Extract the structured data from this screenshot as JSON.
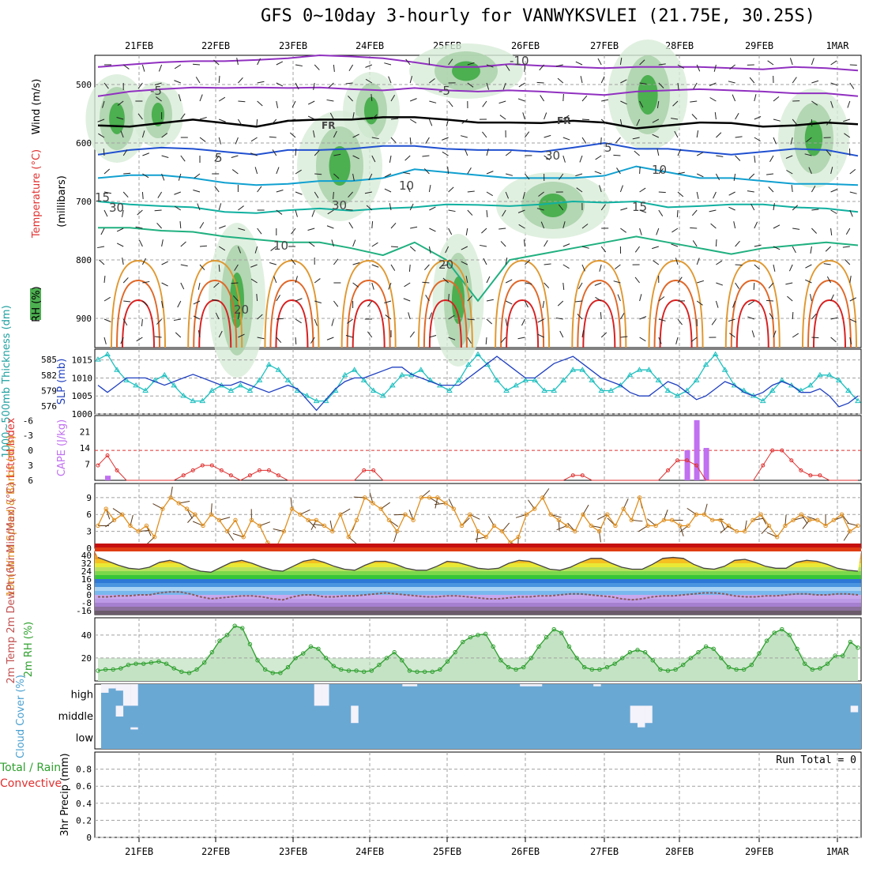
{
  "title": "GFS 0~10day 3-hourly for VANWYKSVLEI (21.75E, 30.25S)",
  "chart_data": [
    {
      "type": "contour",
      "dates": [
        "21FEB",
        "22FEB",
        "23FEB",
        "24FEB",
        "25FEB",
        "26FEB",
        "27FEB",
        "28FEB",
        "29FEB",
        "1MAR"
      ],
      "labels": [
        {
          "text": "Wind (m/s)",
          "color": "#000000"
        },
        {
          "text": "Temperature (°C)",
          "color": "#e03030"
        },
        {
          "text": "RH (%)",
          "color": "#000000"
        },
        {
          "text": "(millibars)",
          "color": "#000000"
        }
      ],
      "ylabel_colors": [
        "#000000",
        "#d04040",
        "#4040c0",
        "#d09030",
        "#000000"
      ],
      "yticks": [
        500,
        600,
        700,
        800,
        900
      ],
      "ylim": [
        450,
        950
      ],
      "contour_labels": [
        "-10",
        "-5",
        "-5",
        "FR",
        "FR",
        "5",
        "5",
        "10",
        "10",
        "15",
        "15",
        "20",
        "20",
        "30",
        "30",
        "30",
        "10"
      ],
      "isotherms": [
        {
          "label": "-10",
          "color": "#9030c0",
          "p": [
            470,
            466,
            462,
            460,
            460,
            458,
            455,
            450,
            452,
            455,
            462,
            470,
            470,
            465,
            468,
            470,
            472,
            470,
            470,
            470,
            472,
            474,
            470,
            472,
            476
          ]
        },
        {
          "label": "-5",
          "color": "#9030c0",
          "p": [
            520,
            512,
            508,
            505,
            506,
            505,
            506,
            505,
            508,
            510,
            506,
            510,
            512,
            510,
            512,
            515,
            518,
            512,
            510,
            508,
            510,
            512,
            515,
            515,
            520
          ]
        },
        {
          "label": "FR",
          "color": "#000000",
          "p": [
            570,
            572,
            566,
            560,
            566,
            572,
            562,
            560,
            560,
            556,
            556,
            560,
            565,
            565,
            566,
            562,
            565,
            575,
            570,
            565,
            566,
            572,
            570,
            565,
            568
          ]
        },
        {
          "label": "5",
          "color": "#2050d0",
          "p": [
            620,
            612,
            608,
            610,
            615,
            620,
            612,
            612,
            610,
            605,
            605,
            610,
            612,
            612,
            615,
            608,
            600,
            610,
            610,
            615,
            620,
            615,
            610,
            612,
            622
          ]
        },
        {
          "label": "10",
          "color": "#10a0d0",
          "p": [
            660,
            655,
            655,
            660,
            668,
            672,
            670,
            665,
            665,
            660,
            645,
            650,
            655,
            660,
            660,
            660,
            656,
            640,
            650,
            660,
            660,
            665,
            670,
            670,
            672
          ]
        },
        {
          "label": "15",
          "color": "#10b0a0",
          "p": [
            700,
            705,
            708,
            710,
            718,
            720,
            715,
            712,
            716,
            712,
            710,
            705,
            706,
            708,
            705,
            700,
            702,
            700,
            710,
            708,
            705,
            705,
            710,
            712,
            718
          ]
        },
        {
          "label": "20",
          "color": "#20b080",
          "p": [
            745,
            745,
            750,
            752,
            760,
            765,
            770,
            770,
            780,
            792,
            770,
            800,
            870,
            800,
            790,
            780,
            770,
            760,
            770,
            780,
            790,
            780,
            775,
            770,
            775
          ]
        }
      ],
      "rh_shade_color": "#4caf50"
    },
    {
      "type": "line",
      "ylabel": "1000~500mb Thickness (dm)",
      "ylabel2": "SLP (mb)",
      "yticks_left": [
        576,
        579,
        582,
        585
      ],
      "yticks_right": [
        1000,
        1005,
        1010,
        1015
      ],
      "series": [
        {
          "name": "thickness",
          "color": "#20c0c0",
          "marker": "triangle",
          "values": [
            585,
            586,
            583,
            581,
            580,
            579,
            581,
            582,
            580,
            578,
            577,
            577,
            579,
            580,
            579,
            580,
            579,
            581,
            584,
            583,
            581,
            579,
            578,
            577,
            577,
            579,
            582,
            583,
            581,
            579,
            578,
            580,
            582,
            582,
            583,
            581,
            580,
            579,
            581,
            584,
            586,
            584,
            581,
            579,
            580,
            581,
            581,
            579,
            579,
            581,
            583,
            583,
            581,
            579,
            579,
            580,
            582,
            583,
            583,
            581,
            579,
            578,
            579,
            581,
            584,
            586,
            583,
            580,
            579,
            578,
            577,
            579,
            581,
            580,
            579,
            580,
            582,
            582,
            581,
            579,
            577
          ]
        },
        {
          "name": "slp",
          "color": "#2040c0",
          "marker": "none",
          "values": [
            1008,
            1006,
            1008,
            1010,
            1010,
            1010,
            1009,
            1008,
            1009,
            1010,
            1011,
            1010,
            1009,
            1008,
            1008,
            1009,
            1008,
            1007,
            1006,
            1007,
            1008,
            1007,
            1004,
            1001,
            1004,
            1007,
            1009,
            1010,
            1010,
            1011,
            1012,
            1013,
            1013,
            1011,
            1010,
            1009,
            1008,
            1008,
            1008,
            1010,
            1012,
            1014,
            1016,
            1014,
            1012,
            1010,
            1010,
            1012,
            1014,
            1015,
            1016,
            1014,
            1012,
            1010,
            1009,
            1008,
            1006,
            1005,
            1005,
            1007,
            1009,
            1008,
            1006,
            1004,
            1005,
            1007,
            1009,
            1008,
            1006,
            1005,
            1006,
            1008,
            1009,
            1008,
            1006,
            1006,
            1007,
            1005,
            1002,
            1003,
            1005
          ]
        }
      ]
    },
    {
      "type": "bar+line",
      "ylabel": "Lifted Index",
      "ylabel2": "CAPE (J/kg)",
      "yticks_left": [
        -6,
        -3,
        0,
        3,
        6
      ],
      "yticks_right": [
        7,
        14,
        21
      ],
      "lifted_index": [
        3,
        1,
        4,
        6,
        6,
        6,
        6,
        6,
        6,
        5,
        4,
        3,
        3,
        4,
        5,
        6,
        5,
        4,
        4,
        5,
        6,
        6,
        6,
        6,
        6,
        6,
        6,
        6,
        4,
        4,
        6,
        6,
        6,
        6,
        6,
        6,
        6,
        6,
        6,
        6,
        6,
        6,
        6,
        6,
        6,
        6,
        6,
        6,
        6,
        6,
        5,
        5,
        6,
        6,
        6,
        6,
        6,
        6,
        6,
        6,
        4,
        2,
        2,
        3,
        6,
        6,
        6,
        6,
        6,
        6,
        3,
        0,
        0,
        2,
        4,
        5,
        5,
        6,
        6,
        6,
        6
      ],
      "cape_bars": [
        {
          "i": 1,
          "v": 2
        },
        {
          "i": 62,
          "v": 13
        },
        {
          "i": 63,
          "v": 26
        },
        {
          "i": 64,
          "v": 14
        }
      ],
      "series": [
        {
          "name": "Lifted Index",
          "color": "#e03030"
        },
        {
          "name": "CAPE",
          "color": "#c070f0"
        }
      ]
    },
    {
      "type": "line",
      "ylabel": "10m Wind Speed & Barbs (m/s)",
      "yticks": [
        0,
        3,
        6,
        9
      ],
      "ylim": [
        0,
        11.5
      ],
      "series": [
        {
          "name": "10m Wind Speed",
          "color": "#e09020",
          "values": [
            4,
            7,
            5,
            6,
            4,
            3,
            4,
            2,
            7,
            9,
            8,
            7,
            6,
            4,
            6,
            5,
            3,
            5,
            2,
            5,
            4,
            1,
            0,
            3,
            7,
            6,
            5,
            5,
            4,
            3,
            6,
            2,
            5,
            9,
            8,
            7,
            5,
            3,
            6,
            5,
            9,
            9,
            9,
            8,
            7,
            4,
            6,
            3,
            2,
            4,
            3,
            1,
            2,
            6,
            7,
            9,
            6,
            5,
            4,
            3,
            6,
            4,
            3,
            6,
            4,
            7,
            5,
            9,
            4,
            4,
            5,
            5,
            4,
            4,
            6,
            6,
            5,
            5,
            4,
            3,
            3,
            5,
            6,
            4,
            2,
            4,
            5,
            6,
            5,
            5,
            4,
            5,
            6,
            3,
            4
          ]
        }
      ]
    },
    {
      "type": "area",
      "ylabel": "2m Temp 2m DewPt (6hr Min/Max) (°C)",
      "yticks": [
        -16,
        -8,
        0,
        8,
        16,
        24,
        32,
        40
      ],
      "ylim": [
        -20,
        44
      ],
      "series": [
        {
          "name": "2m Temp",
          "color": "#444444",
          "values": [
            38,
            34,
            30,
            27,
            26,
            28,
            33,
            35,
            32,
            27,
            24,
            23,
            28,
            33,
            35,
            32,
            28,
            25,
            24,
            29,
            34,
            36,
            33,
            29,
            26,
            25,
            30,
            34,
            34,
            31,
            27,
            25,
            25,
            29,
            34,
            33,
            30,
            27,
            26,
            27,
            32,
            35,
            34,
            30,
            26,
            25,
            28,
            33,
            37,
            37,
            32,
            28,
            26,
            26,
            31,
            37,
            38,
            37,
            31,
            27,
            26,
            29,
            35,
            36,
            33,
            29,
            27,
            27,
            33,
            35,
            34,
            31,
            27,
            25,
            24
          ]
        },
        {
          "name": "2m DewPt",
          "color": "#8a5a5a",
          "values": [
            -2,
            -2,
            -1,
            -1,
            0,
            0,
            2,
            3,
            3,
            1,
            -2,
            -4,
            -3,
            -2,
            -1,
            -1,
            -2,
            -4,
            -5,
            -2,
            0,
            0,
            -2,
            -2,
            -1,
            -1,
            0,
            1,
            2,
            1,
            0,
            -1,
            -2,
            -2,
            -1,
            -1,
            -2,
            -3,
            -4,
            -4,
            -3,
            -2,
            -2,
            -1,
            -1,
            0,
            1,
            1,
            0,
            -1,
            -2,
            -4,
            -5,
            -4,
            -2,
            -1,
            -1,
            0,
            1,
            2,
            2,
            1,
            -1,
            -2,
            -2,
            -1,
            -1,
            0,
            1,
            1,
            0,
            0,
            1,
            1,
            0
          ]
        }
      ],
      "band_colors": [
        "#6b5b6b",
        "#8b6f9c",
        "#a57fd0",
        "#bd9ae8",
        "#caa8ee",
        "#79b8ee",
        "#a9d3f5",
        "#4a94e0",
        "#2e78d6",
        "#37c637",
        "#7ad84a",
        "#b8e060",
        "#e9e935",
        "#f5c020",
        "#f19720",
        "#ee6a18",
        "#e03c14",
        "#c61010"
      ]
    },
    {
      "type": "area",
      "ylabel": "2m RH (%)",
      "yticks": [
        20,
        40
      ],
      "ylim": [
        0,
        55
      ],
      "series": [
        {
          "name": "2m RH",
          "color": "#2ea02e",
          "values": [
            9,
            10,
            10,
            11,
            14,
            15,
            15,
            16,
            17,
            15,
            11,
            8,
            7,
            10,
            16,
            25,
            35,
            40,
            48,
            46,
            32,
            18,
            10,
            7,
            7,
            12,
            20,
            24,
            30,
            28,
            20,
            13,
            10,
            9,
            9,
            8,
            9,
            14,
            20,
            25,
            18,
            9,
            8,
            8,
            8,
            10,
            17,
            25,
            34,
            38,
            40,
            41,
            30,
            18,
            12,
            10,
            12,
            20,
            30,
            38,
            45,
            42,
            30,
            20,
            12,
            10,
            10,
            12,
            15,
            20,
            25,
            27,
            25,
            18,
            10,
            9,
            10,
            14,
            20,
            25,
            30,
            28,
            20,
            12,
            10,
            10,
            14,
            24,
            35,
            42,
            45,
            40,
            28,
            15,
            10,
            11,
            15,
            22,
            22,
            34,
            29
          ]
        }
      ]
    },
    {
      "type": "heatmap",
      "ylabel": "Cloud Cover (%)",
      "row_labels": [
        "high",
        "middle",
        "low"
      ],
      "fill_color": "#6aa8d4",
      "gaps": [
        {
          "i": 0,
          "row": "high",
          "frac": 0.4
        },
        {
          "i": 1,
          "row": "high",
          "frac": 0.2
        },
        {
          "i": 2,
          "row": "high",
          "frac": 0.3
        },
        {
          "i": 3,
          "row": "high",
          "frac": 1.0
        },
        {
          "i": 4,
          "row": "high",
          "frac": 1.0
        },
        {
          "i": 2,
          "row": "middle",
          "frac": 0.5
        },
        {
          "i": 4,
          "row": "low",
          "frac": 0.1
        },
        {
          "i": 29,
          "row": "high",
          "frac": 1.0
        },
        {
          "i": 30,
          "row": "high",
          "frac": 1.0
        },
        {
          "i": 34,
          "row": "middle",
          "frac": 0.8
        },
        {
          "i": 41,
          "row": "high",
          "frac": 0.1
        },
        {
          "i": 42,
          "row": "high",
          "frac": 0.1
        },
        {
          "i": 57,
          "row": "high",
          "frac": 0.1
        },
        {
          "i": 58,
          "row": "high",
          "frac": 0.1
        },
        {
          "i": 59,
          "row": "high",
          "frac": 0.1
        },
        {
          "i": 67,
          "row": "high",
          "frac": 0.1
        },
        {
          "i": 72,
          "row": "middle",
          "frac": 0.8
        },
        {
          "i": 73,
          "row": "middle",
          "frac": 1.0
        },
        {
          "i": 74,
          "row": "middle",
          "frac": 0.8
        },
        {
          "i": 102,
          "row": "middle",
          "frac": 0.3
        }
      ]
    },
    {
      "type": "bar",
      "ylabel": "3hr Precip (mm)",
      "legend": [
        "Total / Rain",
        "Convective"
      ],
      "legend_colors": [
        "#2ea02e",
        "#e03030"
      ],
      "yticks": [
        0,
        0.2,
        0.4,
        0.6,
        0.8
      ],
      "ylim": [
        0,
        1.0
      ],
      "values": [],
      "annotation": "Run Total = 0"
    }
  ]
}
